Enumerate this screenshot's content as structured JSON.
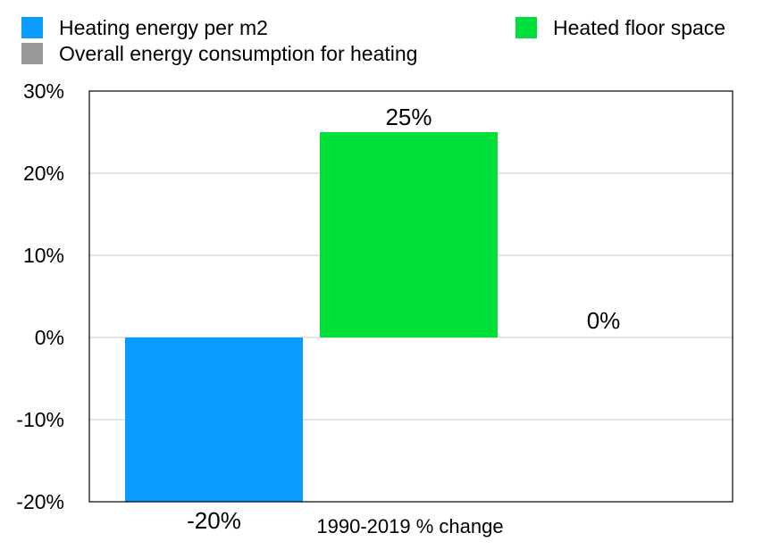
{
  "chart_data": {
    "type": "bar",
    "categories": [
      "1990-2019 % change"
    ],
    "xlabel": "1990-2019 % change",
    "ylabel": "",
    "title": "",
    "ylim": [
      -20,
      30
    ],
    "yticks": [
      30,
      20,
      10,
      0,
      -10,
      -20
    ],
    "ytick_labels": [
      "30%",
      "20%",
      "10%",
      "0%",
      "-10%",
      "-20%"
    ],
    "grid": true,
    "legend_placement": "top",
    "series": [
      {
        "name": "Heating energy per m2",
        "values": [
          -20
        ],
        "label": "-20%",
        "color": "#0a9bff"
      },
      {
        "name": "Heated floor space",
        "values": [
          25
        ],
        "label": "25%",
        "color": "#00e03a"
      },
      {
        "name": "Overall energy consumption for heating",
        "values": [
          0
        ],
        "label": "0%",
        "color": "#999999"
      }
    ]
  }
}
